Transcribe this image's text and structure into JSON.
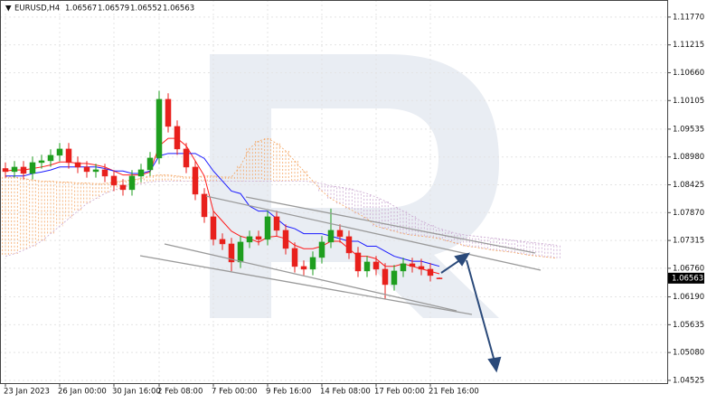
{
  "chart_data": {
    "type": "candlestick",
    "title": "EURUSD,H4",
    "categories": [
      "23 Jan 2023",
      null,
      null,
      null,
      null,
      null,
      "26 Jan 00:00",
      null,
      null,
      null,
      null,
      null,
      "30 Jan 16:00",
      null,
      null,
      null,
      null,
      "2 Feb 08:00",
      null,
      null,
      null,
      null,
      null,
      "7 Feb 00:00",
      null,
      null,
      null,
      null,
      null,
      "9 Feb 16:00",
      null,
      null,
      null,
      null,
      null,
      "14 Feb 08:00",
      null,
      null,
      null,
      null,
      null,
      "17 Feb 00:00",
      null,
      null,
      null,
      null,
      null,
      "21 Feb 16:00",
      null
    ],
    "open": [
      1.0875,
      1.08688,
      1.08778,
      1.08652,
      1.08868,
      1.08904,
      1.09013,
      1.09139,
      1.08868,
      1.08778,
      1.08688,
      1.08724,
      1.08598,
      1.08418,
      1.08328,
      1.08598,
      1.08724,
      1.08959,
      1.1013,
      1.09589,
      1.09139,
      1.08778,
      1.08238,
      1.07787,
      1.07337,
      1.07246,
      1.06886,
      1.07283,
      1.07391,
      1.07337,
      1.07787,
      1.07517,
      1.07156,
      1.06796,
      1.06742,
      1.06976,
      1.07283,
      1.07517,
      1.07391,
      1.07066,
      1.06706,
      1.06886,
      1.06742,
      1.06435,
      1.06706,
      1.0685,
      1.06796,
      1.06742,
      1.06567
    ],
    "high": [
      1.0887,
      1.08898,
      1.08898,
      1.08988,
      1.09024,
      1.09133,
      1.09259,
      1.09259,
      1.08988,
      1.08898,
      1.08844,
      1.08844,
      1.08718,
      1.08538,
      1.08718,
      1.08844,
      1.09079,
      1.103,
      1.1025,
      1.09709,
      1.09259,
      1.08898,
      1.08358,
      1.07907,
      1.07457,
      1.07366,
      1.07403,
      1.07511,
      1.07511,
      1.07907,
      1.07907,
      1.07637,
      1.07276,
      1.06916,
      1.07096,
      1.07403,
      1.0795,
      1.07637,
      1.07511,
      1.07186,
      1.07006,
      1.07006,
      1.06862,
      1.06826,
      1.0697,
      1.0697,
      1.0695,
      1.06862,
      1.06579
    ],
    "low": [
      1.08568,
      1.08568,
      1.08532,
      1.08532,
      1.08748,
      1.08784,
      1.08893,
      1.08748,
      1.08658,
      1.08568,
      1.08568,
      1.08478,
      1.08298,
      1.08208,
      1.08208,
      1.08478,
      1.08604,
      1.08839,
      1.09469,
      1.09019,
      1.08658,
      1.08118,
      1.07667,
      1.07217,
      1.07126,
      1.067,
      1.06766,
      1.07163,
      1.07217,
      1.07217,
      1.07397,
      1.07036,
      1.06676,
      1.06622,
      1.06622,
      1.06856,
      1.07163,
      1.07271,
      1.06946,
      1.06586,
      1.06586,
      1.06622,
      1.0615,
      1.06315,
      1.06586,
      1.06676,
      1.06622,
      1.06496,
      1.06552
    ],
    "close": [
      1.08688,
      1.08778,
      1.08652,
      1.08868,
      1.08904,
      1.09013,
      1.09139,
      1.08868,
      1.08778,
      1.08688,
      1.08724,
      1.08598,
      1.08418,
      1.08328,
      1.08598,
      1.08724,
      1.08959,
      1.1013,
      1.09589,
      1.09139,
      1.08778,
      1.08238,
      1.07787,
      1.07337,
      1.07246,
      1.06886,
      1.07283,
      1.07391,
      1.07337,
      1.07787,
      1.07517,
      1.07156,
      1.06796,
      1.06742,
      1.06976,
      1.07283,
      1.07517,
      1.07391,
      1.07066,
      1.06706,
      1.06886,
      1.06742,
      1.06435,
      1.06706,
      1.0685,
      1.06796,
      1.06742,
      1.06616,
      1.06563
    ],
    "up_color": "#1f9e1f",
    "down_color": "#e8201c",
    "series": [
      {
        "color": "#ff1a1a",
        "values": [
          1.087,
          1.0872,
          1.0872,
          1.0875,
          1.0878,
          1.0882,
          1.0888,
          1.0888,
          1.0885,
          1.0885,
          1.0882,
          1.0878,
          1.087,
          1.0862,
          1.0862,
          1.0862,
          1.0868,
          1.092,
          1.0935,
          1.0935,
          1.092,
          1.089,
          1.086,
          1.079,
          1.077,
          1.075,
          1.074,
          1.0735,
          1.0728,
          1.0738,
          1.074,
          1.0735,
          1.0722,
          1.0715,
          1.0715,
          1.072,
          1.073,
          1.073,
          1.0715,
          1.07,
          1.07,
          1.0695,
          1.068,
          1.068,
          1.0685,
          1.068,
          1.0675,
          1.067,
          1.0665
        ]
      },
      {
        "color": "#1a1aff",
        "values": [
          1.086,
          1.086,
          1.086,
          1.0865,
          1.0868,
          1.0872,
          1.0878,
          1.0878,
          1.0878,
          1.0878,
          1.0878,
          1.0875,
          1.087,
          1.087,
          1.0865,
          1.0865,
          1.087,
          1.09,
          1.0905,
          1.0905,
          1.0905,
          1.0905,
          1.0895,
          1.087,
          1.085,
          1.083,
          1.0825,
          1.08,
          1.079,
          1.079,
          1.0775,
          1.076,
          1.0755,
          1.0745,
          1.0745,
          1.0745,
          1.074,
          1.0735,
          1.073,
          1.073,
          1.072,
          1.072,
          1.071,
          1.07,
          1.0695,
          1.069,
          1.069,
          1.0685,
          1.068
        ]
      }
    ],
    "cloud": [
      {
        "color": "#f4a460",
        "values": [
          1.0858,
          1.0858,
          1.0855,
          1.0852,
          1.085,
          1.085,
          1.0848,
          1.0848,
          1.0846,
          1.0846,
          1.0845,
          1.0845,
          1.0848,
          1.085,
          1.0852,
          1.0855,
          1.086,
          1.0862,
          1.0862,
          1.086,
          1.0858,
          1.0858,
          1.086,
          1.086,
          1.0858,
          1.0858,
          1.088,
          1.0915,
          1.093,
          1.0935,
          1.0925,
          1.091,
          1.089,
          1.087,
          1.085,
          1.083,
          1.0815,
          1.0805,
          1.0795,
          1.0785,
          1.0775,
          1.076,
          1.0755,
          1.075,
          1.0745,
          1.0742,
          1.074,
          1.0738,
          1.0735,
          1.073,
          1.0725,
          1.072,
          1.0718,
          1.0715,
          1.0712,
          1.071,
          1.0708,
          1.0705,
          1.0702,
          1.07,
          1.0698,
          1.0696
        ]
      },
      {
        "color": "#c9a6cf",
        "values": [
          1.07,
          1.0705,
          1.0712,
          1.072,
          1.073,
          1.0745,
          1.076,
          1.0775,
          1.079,
          1.0805,
          1.0815,
          1.0825,
          1.0832,
          1.0838,
          1.0842,
          1.0845,
          1.0848,
          1.085,
          1.085,
          1.085,
          1.085,
          1.085,
          1.085,
          1.085,
          1.085,
          1.085,
          1.085,
          1.085,
          1.085,
          1.085,
          1.085,
          1.085,
          1.085,
          1.085,
          1.0848,
          1.0845,
          1.084,
          1.0838,
          1.0835,
          1.083,
          1.0825,
          1.0818,
          1.081,
          1.08,
          1.079,
          1.078,
          1.077,
          1.0762,
          1.0755,
          1.075,
          1.0745,
          1.0742,
          1.074,
          1.0738,
          1.0736,
          1.0734,
          1.0732,
          1.073,
          1.0728,
          1.0726,
          1.0724,
          1.0722
        ]
      }
    ],
    "ylim": [
      1.0447,
      1.1211
    ],
    "yticks": [
      {
        "value": 1.1177,
        "label": "1.11770"
      },
      {
        "value": 1.11215,
        "label": "1.11215"
      },
      {
        "value": 1.1066,
        "label": "1.10660"
      },
      {
        "value": 1.10105,
        "label": "1.10105"
      },
      {
        "value": 1.09535,
        "label": "1.09535"
      },
      {
        "value": 1.0898,
        "label": "1.08980"
      },
      {
        "value": 1.08425,
        "label": "1.08425"
      },
      {
        "value": 1.0787,
        "label": "1.07870"
      },
      {
        "value": 1.07315,
        "label": "1.07315"
      },
      {
        "value": 1.0676,
        "label": "1.06760"
      },
      {
        "value": 1.0619,
        "label": "1.06190"
      },
      {
        "value": 1.05635,
        "label": "1.05635"
      },
      {
        "value": 1.0508,
        "label": "1.05080"
      },
      {
        "value": 1.04525,
        "label": "1.04525"
      }
    ],
    "grid": true
  }
}
